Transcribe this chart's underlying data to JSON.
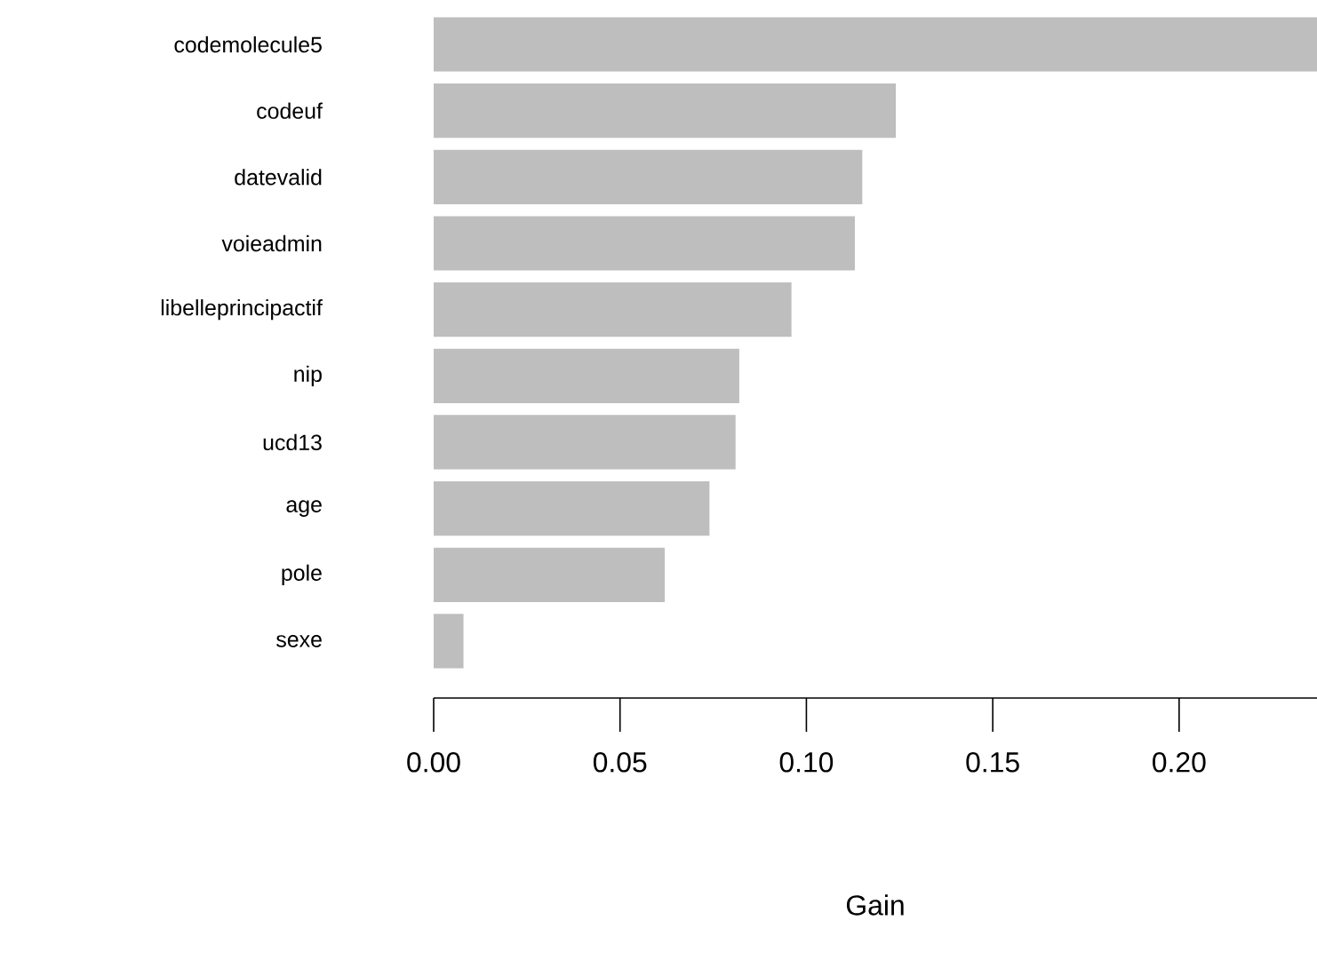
{
  "chart_data": {
    "type": "bar",
    "orientation": "horizontal",
    "xlabel": "Gain",
    "categories": [
      "codemolecule5",
      "codeuf",
      "datevalid",
      "voieadmin",
      "libelleprincipactif",
      "nip",
      "ucd13",
      "age",
      "pole",
      "sexe"
    ],
    "values": [
      0.237,
      0.124,
      0.115,
      0.113,
      0.096,
      0.082,
      0.081,
      0.074,
      0.062,
      0.008
    ],
    "color": "#bebebe",
    "xlim": [
      0,
      0.237
    ],
    "xticks": [
      {
        "value": 0,
        "label": "0.00"
      },
      {
        "value": 0.05,
        "label": "0.05"
      },
      {
        "value": 0.1,
        "label": "0.10"
      },
      {
        "value": 0.15,
        "label": "0.15"
      },
      {
        "value": 0.2,
        "label": "0.20"
      }
    ]
  }
}
